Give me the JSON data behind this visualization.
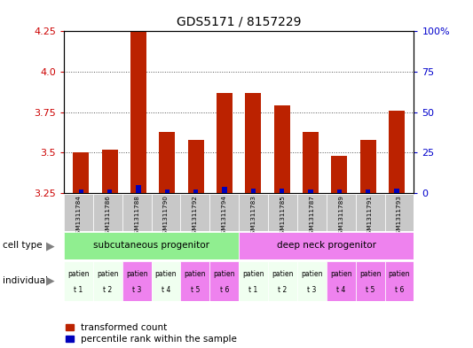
{
  "title": "GDS5171 / 8157229",
  "samples": [
    "GSM1311784",
    "GSM1311786",
    "GSM1311788",
    "GSM1311790",
    "GSM1311792",
    "GSM1311794",
    "GSM1311783",
    "GSM1311785",
    "GSM1311787",
    "GSM1311789",
    "GSM1311791",
    "GSM1311793"
  ],
  "red_values": [
    3.5,
    3.52,
    4.25,
    3.63,
    3.58,
    3.87,
    3.87,
    3.79,
    3.63,
    3.48,
    3.58,
    3.76
  ],
  "blue_values": [
    2.0,
    2.0,
    5.0,
    2.0,
    2.0,
    4.0,
    3.0,
    3.0,
    2.0,
    2.0,
    2.0,
    3.0
  ],
  "ymin": 3.25,
  "ymax": 4.25,
  "y_ticks_left": [
    3.25,
    3.5,
    3.75,
    4.0,
    4.25
  ],
  "y_ticks_right": [
    0,
    25,
    50,
    75,
    100
  ],
  "cell_type_groups": [
    {
      "label": "subcutaneous progenitor",
      "start": 0,
      "end": 6,
      "color": "#90EE90"
    },
    {
      "label": "deep neck progenitor",
      "start": 6,
      "end": 12,
      "color": "#EE82EE"
    }
  ],
  "individual_labels": [
    "patien\nt 1",
    "patien\nt 2",
    "patien\nt 3",
    "patien\nt 4",
    "patien\nt 5",
    "patien\nt 6",
    "patien\nt 1",
    "patien\nt 2",
    "patien\nt 3",
    "patien\nt 4",
    "patien\nt 5",
    "patien\nt 6"
  ],
  "individual_colors": [
    "#F0FFF0",
    "#F0FFF0",
    "#EE82EE",
    "#F0FFF0",
    "#EE82EE",
    "#EE82EE",
    "#F0FFF0",
    "#F0FFF0",
    "#F0FFF0",
    "#EE82EE",
    "#EE82EE",
    "#EE82EE"
  ],
  "bar_color_red": "#BB2200",
  "bar_color_blue": "#0000BB",
  "bar_width": 0.55,
  "legend_red": "transformed count",
  "legend_blue": "percentile rank within the sample",
  "cell_type_label": "cell type",
  "individual_label": "individual",
  "grid_color": "#555555",
  "sample_bg": "#C8C8C8",
  "ylabel_left_color": "#CC0000",
  "ylabel_right_color": "#0000CC",
  "arrow_color": "#808080"
}
